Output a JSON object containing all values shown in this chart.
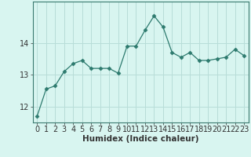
{
  "x": [
    0,
    1,
    2,
    3,
    4,
    5,
    6,
    7,
    8,
    9,
    10,
    11,
    12,
    13,
    14,
    15,
    16,
    17,
    18,
    19,
    20,
    21,
    22,
    23
  ],
  "y": [
    11.7,
    12.55,
    12.65,
    13.1,
    13.35,
    13.45,
    13.2,
    13.2,
    13.2,
    13.05,
    13.9,
    13.9,
    14.4,
    14.85,
    14.5,
    13.7,
    13.55,
    13.7,
    13.45,
    13.45,
    13.5,
    13.55,
    13.8,
    13.6
  ],
  "line_color": "#2d7a6e",
  "marker": "D",
  "marker_size": 2.5,
  "bg_color": "#d8f5f0",
  "grid_color": "#b8ddd8",
  "axis_bg": "#d8f5f0",
  "xlabel": "Humidex (Indice chaleur)",
  "ylabel": "",
  "ylim": [
    11.5,
    15.3
  ],
  "xlim": [
    -0.5,
    23.5
  ],
  "yticks": [
    12,
    13,
    14
  ],
  "xtick_labels": [
    "0",
    "1",
    "2",
    "3",
    "4",
    "5",
    "6",
    "7",
    "8",
    "9",
    "10",
    "11",
    "12",
    "13",
    "14",
    "15",
    "16",
    "17",
    "18",
    "19",
    "20",
    "21",
    "22",
    "23"
  ],
  "xlabel_fontsize": 7.5,
  "tick_fontsize": 7,
  "spine_color": "#3a7a70"
}
